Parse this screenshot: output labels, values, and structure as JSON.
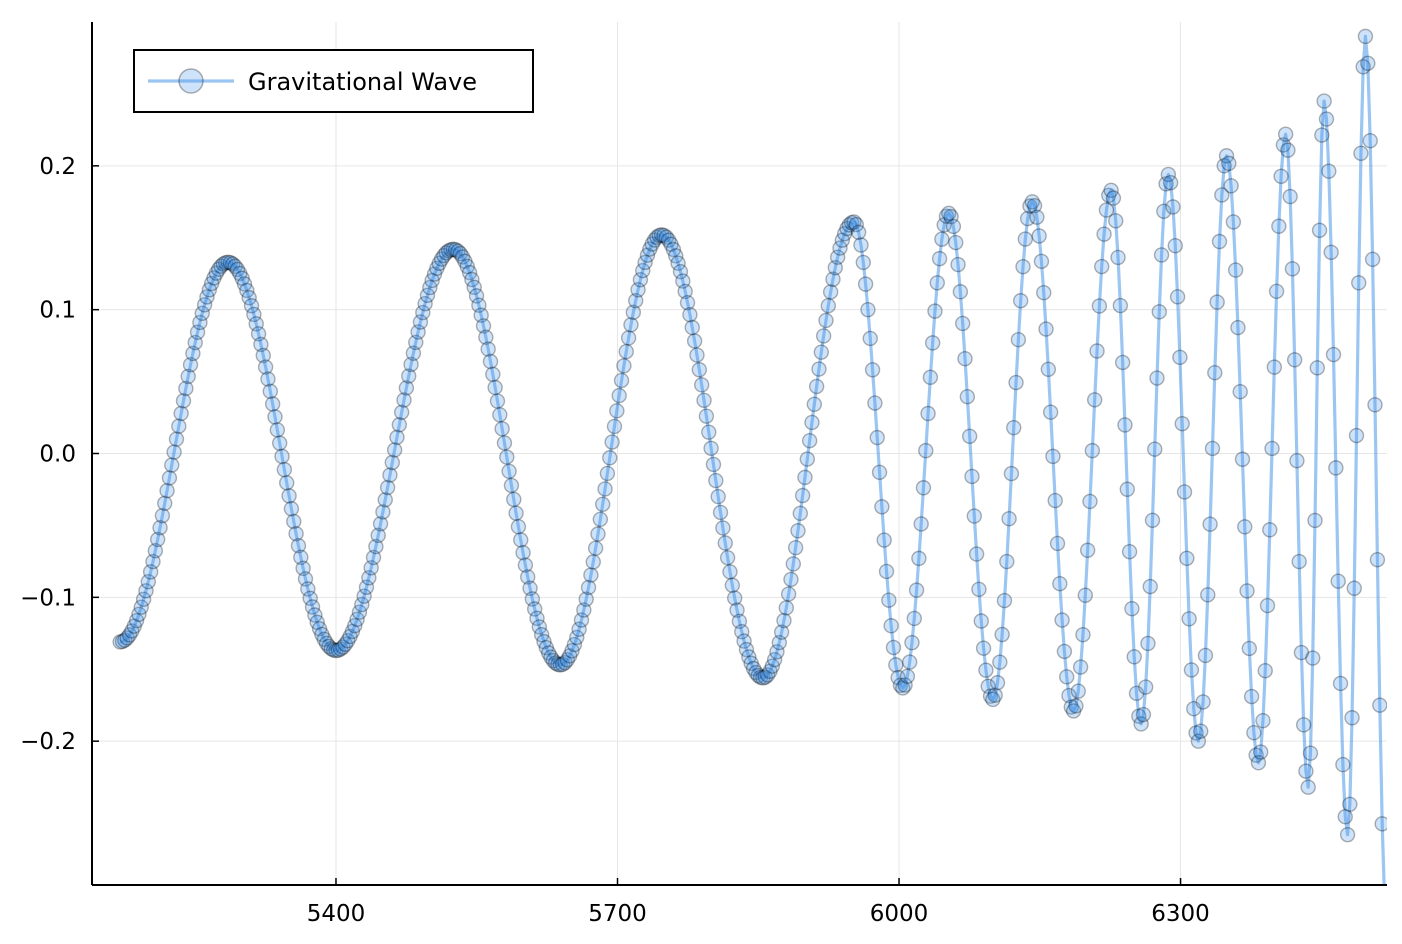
{
  "chart_data": {
    "type": "line",
    "series": [
      {
        "name": "Gravitational Wave",
        "color": "#3a8ee6",
        "markers": true,
        "segments": [
          {
            "t_start": 5170,
            "t_end": 5285,
            "y_start": -0.131,
            "amp_start": 0.131,
            "amp_end": 0.133,
            "step": 2.5
          },
          {
            "t_end": 5400,
            "amp_end": 0.137
          },
          {
            "t_end": 5525,
            "amp_end": 0.142
          },
          {
            "t_end": 5639,
            "amp_end": 0.147
          },
          {
            "t_end": 5747,
            "amp_end": 0.152
          },
          {
            "t_end": 5855,
            "amp_end": 0.156
          },
          {
            "t_end": 5952,
            "amp_end": 0.161
          },
          {
            "t_end": 6004,
            "amp_end": 0.163
          },
          {
            "t_end": 6053,
            "amp_end": 0.167
          },
          {
            "t_end": 6100,
            "amp_end": 0.171
          },
          {
            "t_end": 6142,
            "amp_end": 0.175
          },
          {
            "t_end": 6186,
            "amp_end": 0.179
          },
          {
            "t_end": 6226,
            "amp_end": 0.183
          },
          {
            "t_end": 6258,
            "amp_end": 0.188
          },
          {
            "t_end": 6287,
            "amp_end": 0.194
          },
          {
            "t_end": 6319,
            "amp_end": 0.2
          },
          {
            "t_end": 6349,
            "amp_end": 0.207
          },
          {
            "t_end": 6383,
            "amp_end": 0.215
          },
          {
            "t_end": 6412,
            "amp_end": 0.222
          },
          {
            "t_end": 6436,
            "amp_end": 0.232
          },
          {
            "t_end": 6453,
            "amp_end": 0.245
          },
          {
            "t_end": 6478,
            "amp_end": 0.265
          },
          {
            "t_end": 6497,
            "amp_end": 0.29
          },
          {
            "t_end": 6520,
            "amp_end": 0.33
          }
        ]
      }
    ],
    "xlim": [
      5140,
      6520
    ],
    "ylim": [
      -0.3,
      0.3
    ],
    "xticks": [
      "5400",
      "5700",
      "6000",
      "6300"
    ],
    "xtick_values": [
      5400,
      5700,
      6000,
      6300
    ],
    "yticks": [
      "0.2",
      "0.1",
      "0.0",
      "−0.1",
      "−0.2"
    ],
    "ytick_values": [
      0.2,
      0.1,
      0.0,
      -0.1,
      -0.2
    ],
    "grid": true,
    "legend_position": "top-left"
  }
}
